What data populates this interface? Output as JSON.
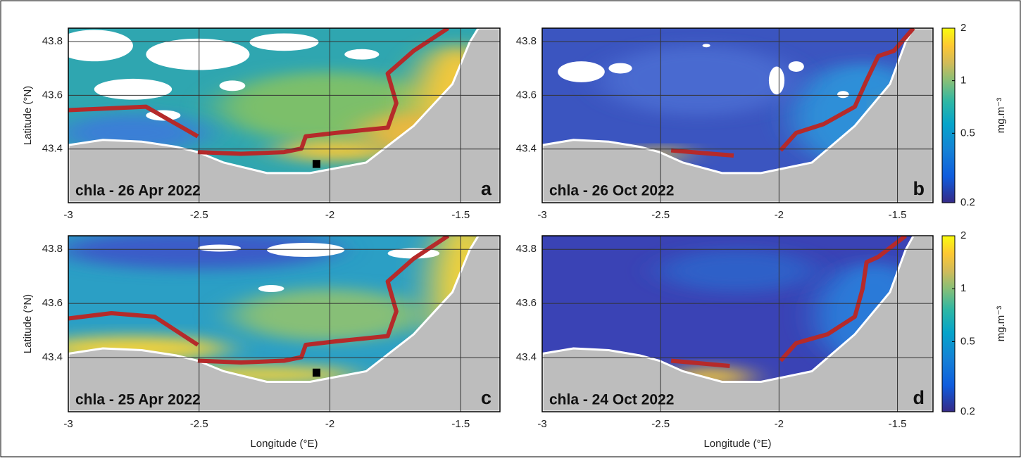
{
  "axes": {
    "xlabel": "Longitude (°E)",
    "ylabel": "Latitude (°N)",
    "xlim": [
      -3,
      -1.35
    ],
    "ylim": [
      43.2,
      43.85
    ],
    "xticks": [
      -3,
      -2.5,
      -2,
      -1.5
    ],
    "yticks": [
      43.4,
      43.6,
      43.8
    ],
    "grid": true
  },
  "colorbar": {
    "label": "mg.m⁻³",
    "lim": [
      0.2,
      2
    ],
    "ticks": [
      0.2,
      0.5,
      1,
      2
    ],
    "log": true
  },
  "panels": [
    {
      "title": "chla - 26 Apr 2022",
      "letter": "a"
    },
    {
      "title": "chla - 26 Oct 2022",
      "letter": "b"
    },
    {
      "title": "chla - 25 Apr 2022",
      "letter": "c"
    },
    {
      "title": "chla - 24 Oct 2022",
      "letter": "d"
    }
  ]
}
